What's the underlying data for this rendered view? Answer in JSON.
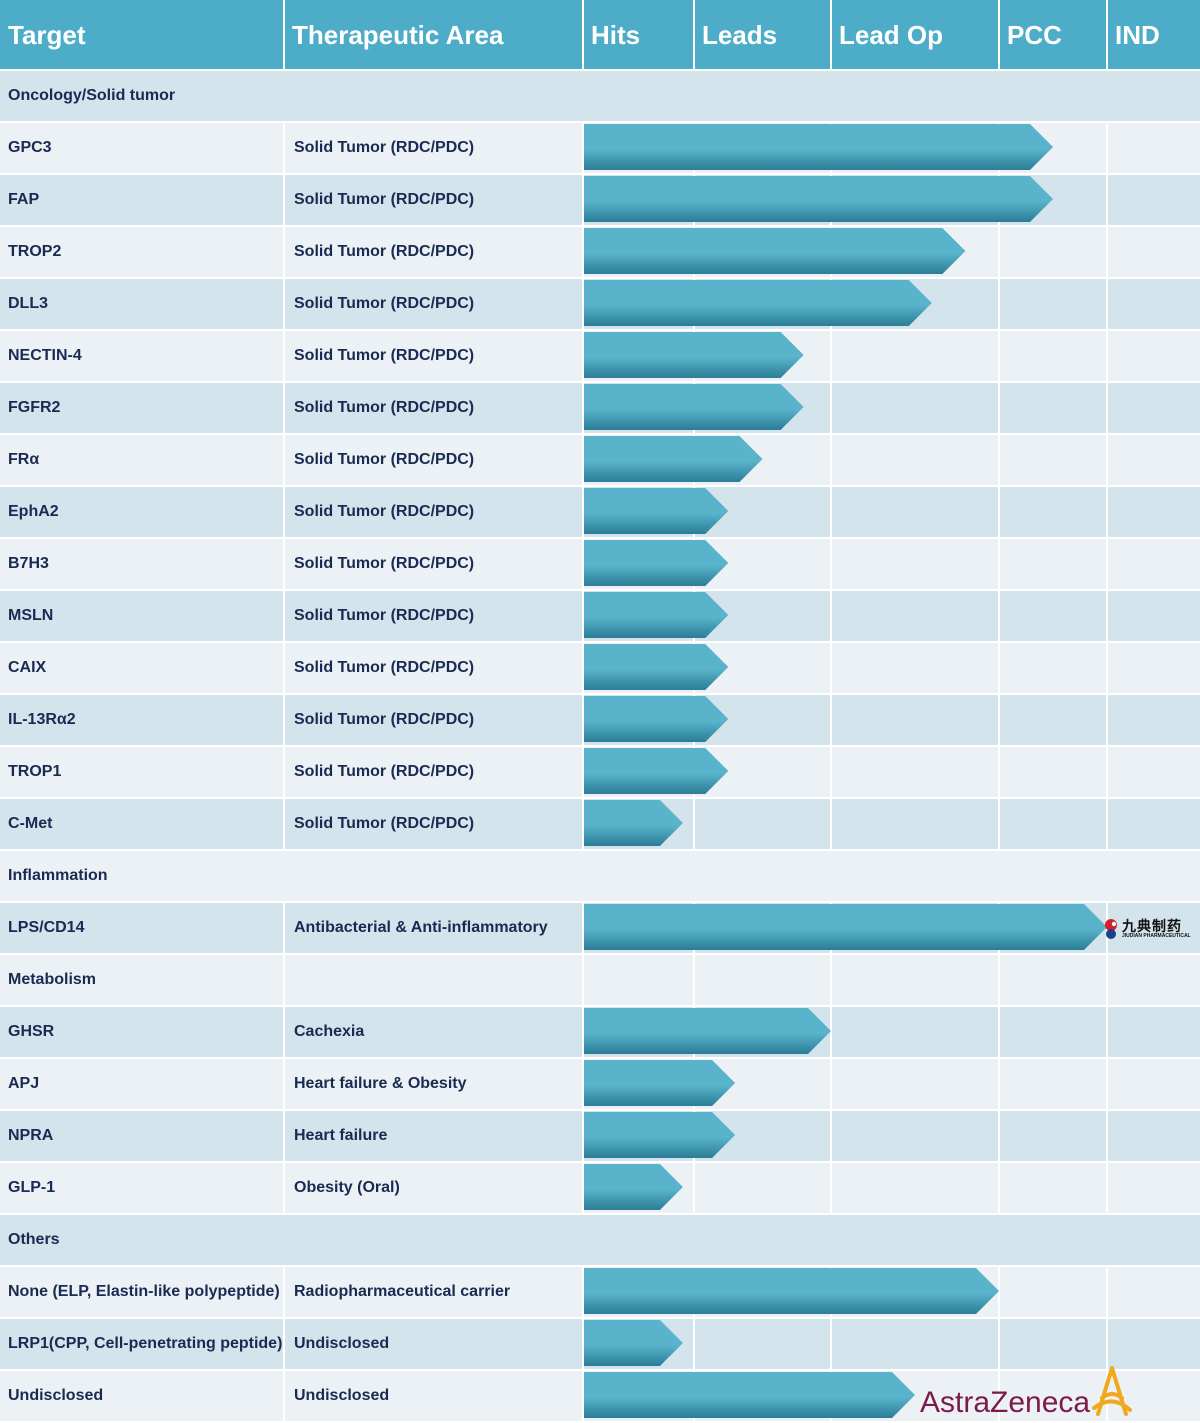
{
  "header": {
    "target": "Target",
    "area": "Therapeutic Area",
    "stages": [
      "Hits",
      "Leads",
      "Lead Op",
      "PCC",
      "IND"
    ]
  },
  "colors": {
    "header": "#4dadc8",
    "row_a": "#d3e4ec",
    "row_b": "#ebf1f5",
    "bar_top": "#58b3cb",
    "bar_bottom": "#2b7d96",
    "text": "#1a2a52",
    "astrazeneca": "#7c1a4a",
    "astrazeneca_logo": "#f0a81c",
    "jiudian_red": "#d81e26"
  },
  "chart_data": {
    "type": "pipeline",
    "stages": [
      "Hits",
      "Leads",
      "Lead Op",
      "PCC",
      "IND"
    ],
    "progress_note": "progress is measured in stage units from the start of Hits (0) to the end of IND (5)",
    "rows": [
      {
        "kind": "section",
        "label": "Oncology/Solid tumor"
      },
      {
        "kind": "item",
        "target": "GPC3",
        "area": "Solid Tumor (RDC/PDC)",
        "progress": 3.5
      },
      {
        "kind": "item",
        "target": "FAP",
        "area": "Solid Tumor (RDC/PDC)",
        "progress": 3.5
      },
      {
        "kind": "item",
        "target": "TROP2",
        "area": "Solid Tumor (RDC/PDC)",
        "progress": 2.8
      },
      {
        "kind": "item",
        "target": "DLL3",
        "area": "Solid Tumor (RDC/PDC)",
        "progress": 2.6
      },
      {
        "kind": "item",
        "target": "NECTIN-4",
        "area": "Solid Tumor (RDC/PDC)",
        "progress": 1.8
      },
      {
        "kind": "item",
        "target": "FGFR2",
        "area": "Solid Tumor (RDC/PDC)",
        "progress": 1.8
      },
      {
        "kind": "item",
        "target": "FRα",
        "area": "Solid Tumor (RDC/PDC)",
        "progress": 1.5
      },
      {
        "kind": "item",
        "target": "EphA2",
        "area": "Solid Tumor (RDC/PDC)",
        "progress": 1.25
      },
      {
        "kind": "item",
        "target": "B7H3",
        "area": "Solid Tumor (RDC/PDC)",
        "progress": 1.25
      },
      {
        "kind": "item",
        "target": "MSLN",
        "area": "Solid Tumor (RDC/PDC)",
        "progress": 1.25
      },
      {
        "kind": "item",
        "target": "CAIX",
        "area": "Solid Tumor (RDC/PDC)",
        "progress": 1.25
      },
      {
        "kind": "item",
        "target": "IL-13Rα2",
        "area": "Solid Tumor (RDC/PDC)",
        "progress": 1.25
      },
      {
        "kind": "item",
        "target": "TROP1",
        "area": "Solid Tumor (RDC/PDC)",
        "progress": 1.25
      },
      {
        "kind": "item",
        "target": "C-Met",
        "area": "Solid Tumor (RDC/PDC)",
        "progress": 0.9
      },
      {
        "kind": "section",
        "label": "Inflammation"
      },
      {
        "kind": "item",
        "target": "LPS/CD14",
        "area": "Antibacterial & Anti-inflammatory",
        "progress": 4.0,
        "partner": "jiudian"
      },
      {
        "kind": "section",
        "label": "Metabolism",
        "gridded": true
      },
      {
        "kind": "item",
        "target": "GHSR",
        "area": "Cachexia",
        "progress": 2.0
      },
      {
        "kind": "item",
        "target": "APJ",
        "area": "Heart failure & Obesity",
        "progress": 1.3
      },
      {
        "kind": "item",
        "target": "NPRA",
        "area": "Heart failure",
        "progress": 1.3
      },
      {
        "kind": "item",
        "target": "GLP-1",
        "area": "Obesity (Oral)",
        "progress": 0.9
      },
      {
        "kind": "section",
        "label": "Others"
      },
      {
        "kind": "item",
        "target": "None (ELP, Elastin-like polypeptide)",
        "area": "Radiopharmaceutical carrier",
        "progress": 3.0
      },
      {
        "kind": "item",
        "target": "LRP1(CPP, Cell-penetrating peptide)",
        "area": "Undisclosed",
        "progress": 0.9
      },
      {
        "kind": "item",
        "target": "Undisclosed",
        "area": "Undisclosed",
        "progress": 2.5,
        "partner": "astrazeneca"
      }
    ]
  },
  "partners": {
    "jiudian": {
      "name_cn": "九典制药",
      "name_en": "JIUDIAN PHARMACEUTICAL"
    },
    "astrazeneca": {
      "name": "AstraZeneca"
    }
  }
}
